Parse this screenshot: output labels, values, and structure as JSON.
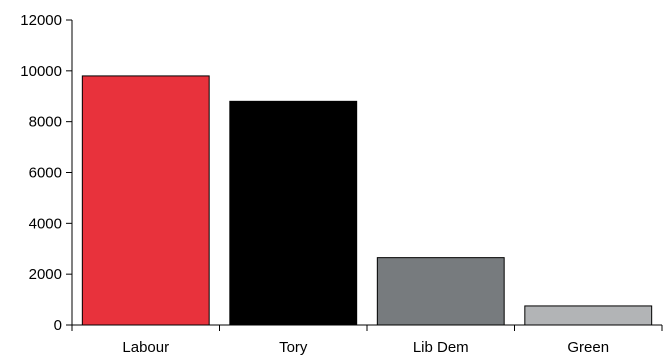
{
  "chart_data": {
    "type": "bar",
    "title": "",
    "xlabel": "",
    "ylabel": "",
    "categories": [
      "Labour",
      "Tory",
      "Lib Dem",
      "Green"
    ],
    "values": [
      9800,
      8800,
      2650,
      750
    ],
    "colors": [
      "#e8323c",
      "#000000",
      "#777b7e",
      "#b2b4b6"
    ],
    "ylim": [
      0,
      12000
    ],
    "yticks": [
      0,
      2000,
      4000,
      6000,
      8000,
      10000,
      12000
    ],
    "ytick_labels": [
      "0",
      "2000",
      "4000",
      "6000",
      "8000",
      "10000",
      "12000"
    ],
    "grid": false,
    "legend": "none"
  }
}
